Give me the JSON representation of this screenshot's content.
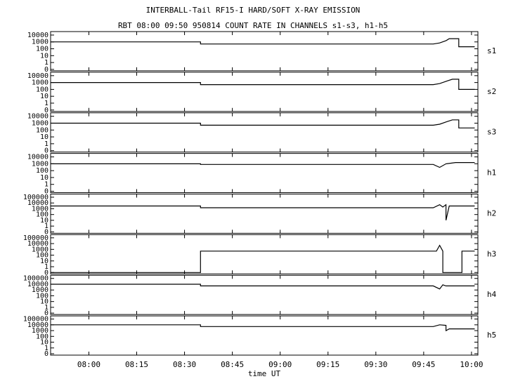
{
  "header": {
    "title": "INTERBALL-Tail RF15-I HARD/SOFT X-RAY EMISSION",
    "subtitle": "RBT 08:00 09:50 950814  COUNT RATE IN CHANNELS s1-s3, h1-h5"
  },
  "x_axis": {
    "label": "time UT",
    "xlim": [
      "07:48",
      "10:02"
    ],
    "xticks": [
      "08:00",
      "08:15",
      "08:30",
      "08:45",
      "09:00",
      "09:15",
      "09:30",
      "09:45",
      "10:00"
    ]
  },
  "chart_data": [
    {
      "type": "line",
      "label": "s1",
      "log": true,
      "ylim": [
        0,
        20000
      ],
      "yticks": [
        0,
        1,
        10,
        100,
        1000,
        10000
      ],
      "x": [
        "07:48",
        "08:35",
        "08:35",
        "09:48",
        "09:50",
        "09:52",
        "09:53",
        "09:56",
        "09:56",
        "10:01"
      ],
      "series": [
        {
          "color": "#000000",
          "values": [
            1000,
            1000,
            500,
            500,
            700,
            1500,
            3000,
            3000,
            200,
            200
          ]
        }
      ]
    },
    {
      "type": "line",
      "label": "s2",
      "log": true,
      "ylim": [
        0,
        20000
      ],
      "yticks": [
        0,
        1,
        10,
        100,
        1000,
        10000
      ],
      "x": [
        "07:48",
        "08:35",
        "08:35",
        "09:48",
        "09:50",
        "09:52",
        "09:54",
        "09:56",
        "09:56",
        "10:01"
      ],
      "series": [
        {
          "color": "#000000",
          "values": [
            1000,
            1000,
            500,
            500,
            700,
            1500,
            3000,
            3000,
            100,
            100
          ]
        }
      ]
    },
    {
      "type": "line",
      "label": "s3",
      "log": true,
      "ylim": [
        0,
        20000
      ],
      "yticks": [
        0,
        1,
        10,
        100,
        1000,
        10000
      ],
      "x": [
        "07:48",
        "08:35",
        "08:35",
        "09:48",
        "09:50",
        "09:52",
        "09:54",
        "09:56",
        "09:56",
        "10:01"
      ],
      "series": [
        {
          "color": "#000000",
          "values": [
            1000,
            1000,
            500,
            500,
            700,
            1500,
            3000,
            3000,
            200,
            200
          ]
        }
      ]
    },
    {
      "type": "line",
      "label": "h1",
      "log": true,
      "ylim": [
        0,
        20000
      ],
      "yticks": [
        0,
        1,
        10,
        100,
        1000,
        10000
      ],
      "x": [
        "07:48",
        "08:35",
        "08:35",
        "09:48",
        "09:50",
        "09:52",
        "09:55",
        "10:01"
      ],
      "series": [
        {
          "color": "#000000",
          "values": [
            1000,
            1000,
            800,
            800,
            300,
            1000,
            1500,
            1500
          ]
        }
      ]
    },
    {
      "type": "line",
      "label": "h2",
      "log": true,
      "ylim": [
        0,
        200000
      ],
      "yticks": [
        0,
        1,
        10,
        100,
        1000,
        10000,
        100000
      ],
      "x": [
        "07:48",
        "08:35",
        "08:35",
        "09:48",
        "09:50",
        "09:51",
        "09:52",
        "09:52",
        "09:53",
        "10:01"
      ],
      "series": [
        {
          "color": "#000000",
          "values": [
            3000,
            3000,
            1500,
            1500,
            5000,
            2000,
            5000,
            10,
            3000,
            3000
          ]
        }
      ]
    },
    {
      "type": "line",
      "label": "h3",
      "log": true,
      "ylim": [
        0,
        200000
      ],
      "yticks": [
        0,
        1,
        10,
        100,
        1000,
        10000,
        100000
      ],
      "x": [
        "07:48",
        "08:35",
        "08:35",
        "09:49",
        "09:50",
        "09:51",
        "09:51",
        "09:57",
        "09:57",
        "10:01"
      ],
      "series": [
        {
          "color": "#000000",
          "values": [
            0,
            0,
            500,
            500,
            5000,
            500,
            0,
            0,
            500,
            500
          ]
        }
      ]
    },
    {
      "type": "line",
      "label": "h4",
      "log": true,
      "ylim": [
        0,
        200000
      ],
      "yticks": [
        0,
        1,
        10,
        100,
        1000,
        10000,
        100000
      ],
      "x": [
        "07:48",
        "08:35",
        "08:35",
        "09:48",
        "09:50",
        "09:51",
        "09:52",
        "10:01"
      ],
      "series": [
        {
          "color": "#000000",
          "values": [
            10000,
            10000,
            5000,
            5000,
            1500,
            8000,
            5000,
            5000
          ]
        }
      ]
    },
    {
      "type": "line",
      "label": "h5",
      "log": true,
      "ylim": [
        0,
        200000
      ],
      "yticks": [
        0,
        1,
        10,
        100,
        1000,
        10000,
        100000
      ],
      "x": [
        "07:48",
        "08:35",
        "08:35",
        "09:48",
        "09:50",
        "09:52",
        "09:52",
        "09:53",
        "10:01"
      ],
      "series": [
        {
          "color": "#000000",
          "values": [
            10000,
            10000,
            5000,
            5000,
            10000,
            8000,
            1000,
            2000,
            2000
          ]
        }
      ]
    }
  ]
}
